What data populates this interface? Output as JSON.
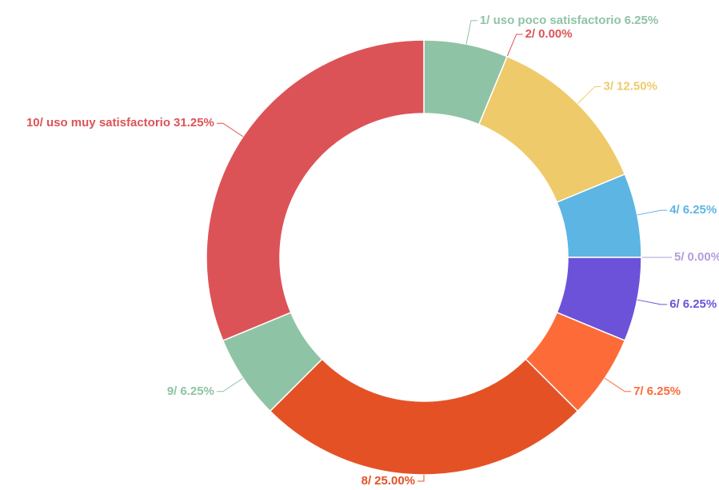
{
  "chart_data": {
    "type": "donut",
    "categories": [
      "1/ uso poco satisfactorio",
      "2/",
      "3/",
      "4/",
      "5/",
      "6/",
      "7/",
      "8/",
      "9/",
      "10/ uso muy satisfactorio"
    ],
    "values": [
      6.25,
      0,
      12.5,
      6.25,
      0,
      6.25,
      6.25,
      25,
      6.25,
      31.25
    ],
    "value_labels": [
      "6.25%",
      "0.00%",
      "12.50%",
      "6.25%",
      "0.00%",
      "6.25%",
      "6.25%",
      "25.00%",
      "6.25%",
      "31.25%"
    ],
    "colors": [
      "#8fc3a5",
      "#dc5357",
      "#efca6a",
      "#5db5e3",
      "#b39ddb",
      "#6c52d9",
      "#fd6b39",
      "#e45125",
      "#8fc3a5",
      "#dc5357"
    ]
  }
}
